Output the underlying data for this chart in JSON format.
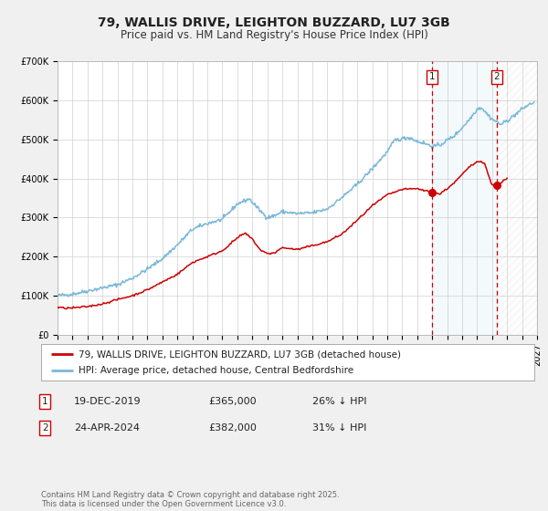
{
  "title": "79, WALLIS DRIVE, LEIGHTON BUZZARD, LU7 3GB",
  "subtitle": "Price paid vs. HM Land Registry's House Price Index (HPI)",
  "background_color": "#f0f0f0",
  "plot_background_color": "#ffffff",
  "hpi_color": "#7ab8d9",
  "price_color": "#cc0000",
  "vline_color": "#cc0000",
  "ylim": [
    0,
    700000
  ],
  "xlim_start": 1995,
  "xlim_end": 2027,
  "marker1_x": 2019.97,
  "marker1_y": 365000,
  "marker2_x": 2024.32,
  "marker2_y": 382000,
  "legend_entries": [
    "79, WALLIS DRIVE, LEIGHTON BUZZARD, LU7 3GB (detached house)",
    "HPI: Average price, detached house, Central Bedfordshire"
  ],
  "table_rows": [
    {
      "num": "1",
      "date": "19-DEC-2019",
      "price": "£365,000",
      "hpi": "26% ↓ HPI"
    },
    {
      "num": "2",
      "date": "24-APR-2024",
      "price": "£382,000",
      "hpi": "31% ↓ HPI"
    }
  ],
  "footnote": "Contains HM Land Registry data © Crown copyright and database right 2025.\nThis data is licensed under the Open Government Licence v3.0.",
  "title_fontsize": 10,
  "subtitle_fontsize": 8.5,
  "tick_fontsize": 7,
  "legend_fontsize": 7.5,
  "table_fontsize": 8,
  "footnote_fontsize": 6
}
